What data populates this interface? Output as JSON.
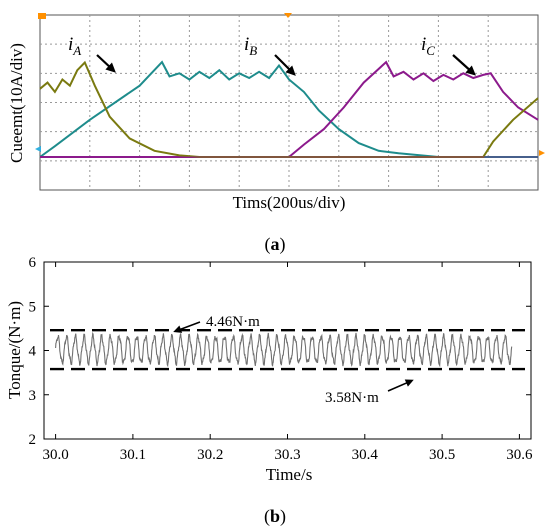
{
  "chart_data": [
    {
      "type": "line",
      "panel_label": "(a)",
      "panel_letter": "a",
      "xlabel": "Tims(200us/div)",
      "ylabel": "Cueemt(10A/div)",
      "x_divisions": 10,
      "y_divisions": 6,
      "grid": true,
      "annotations": [
        {
          "label": "i",
          "subscript": "A"
        },
        {
          "label": "i",
          "subscript": "B"
        },
        {
          "label": "i",
          "subscript": "C"
        }
      ],
      "series": [
        {
          "name": "iA",
          "color": "#1e8c8c",
          "points": [
            [
              0,
              0
            ],
            [
              0.3,
              0.35
            ],
            [
              1.0,
              1.2
            ],
            [
              2.0,
              2.3
            ],
            [
              2.45,
              3.06
            ],
            [
              2.6,
              2.6
            ],
            [
              2.8,
              2.7
            ],
            [
              3.0,
              2.5
            ],
            [
              3.2,
              2.75
            ],
            [
              3.4,
              2.55
            ],
            [
              3.6,
              2.8
            ],
            [
              3.8,
              2.5
            ],
            [
              4.0,
              2.7
            ],
            [
              4.2,
              2.55
            ],
            [
              4.4,
              2.75
            ],
            [
              4.6,
              2.55
            ],
            [
              4.8,
              2.95
            ],
            [
              5.0,
              2.5
            ],
            [
              5.3,
              2.1
            ],
            [
              5.6,
              1.5
            ],
            [
              6.0,
              0.9
            ],
            [
              6.4,
              0.45
            ],
            [
              6.8,
              0.2
            ],
            [
              7.2,
              0.12
            ],
            [
              7.6,
              0.06
            ],
            [
              8.0,
              0
            ],
            [
              10,
              0
            ]
          ]
        },
        {
          "name": "iB",
          "color": "#8c1a8c",
          "points": [
            [
              0,
              0
            ],
            [
              5.0,
              0
            ],
            [
              5.3,
              0.4
            ],
            [
              5.7,
              0.9
            ],
            [
              6.1,
              1.6
            ],
            [
              6.5,
              2.4
            ],
            [
              6.95,
              3.06
            ],
            [
              7.1,
              2.6
            ],
            [
              7.3,
              2.75
            ],
            [
              7.5,
              2.5
            ],
            [
              7.7,
              2.7
            ],
            [
              7.9,
              2.45
            ],
            [
              8.1,
              2.65
            ],
            [
              8.3,
              2.5
            ],
            [
              8.5,
              2.7
            ],
            [
              8.7,
              2.55
            ],
            [
              8.9,
              2.65
            ],
            [
              9.05,
              2.7
            ],
            [
              9.3,
              2.1
            ],
            [
              9.6,
              1.6
            ],
            [
              10,
              1.2
            ]
          ]
        },
        {
          "name": "iC",
          "color": "#7a7a10",
          "points": [
            [
              0,
              2.2
            ],
            [
              0.15,
              2.4
            ],
            [
              0.3,
              2.1
            ],
            [
              0.45,
              2.5
            ],
            [
              0.6,
              2.3
            ],
            [
              0.75,
              2.8
            ],
            [
              0.9,
              3.05
            ],
            [
              1.1,
              2.3
            ],
            [
              1.4,
              1.3
            ],
            [
              1.8,
              0.6
            ],
            [
              2.3,
              0.2
            ],
            [
              2.8,
              0.05
            ],
            [
              3.2,
              0
            ],
            [
              8.9,
              0
            ],
            [
              9.1,
              0.5
            ],
            [
              9.5,
              1.2
            ],
            [
              10,
              1.9
            ]
          ]
        }
      ]
    },
    {
      "type": "line",
      "panel_label": "(b)",
      "panel_letter": "b",
      "xlabel": "Time/s",
      "ylabel": "Tonque/(N·m)",
      "xlim": [
        29.985,
        30.615
      ],
      "ylim": [
        2,
        6
      ],
      "x_ticks": [
        "30.0",
        "30.1",
        "30.2",
        "30.3",
        "30.4",
        "30.5",
        "30.6"
      ],
      "y_ticks": [
        "2",
        "3",
        "4",
        "5",
        "6"
      ],
      "grid": false,
      "reference_lines": [
        {
          "value": 4.46,
          "label": "4.46N·m"
        },
        {
          "value": 3.58,
          "label": "3.58N·m"
        }
      ],
      "series": [
        {
          "color": "#707070",
          "x_start": 30.0,
          "x_end": 30.59,
          "mean": 4.02,
          "amplitude": 0.38,
          "cycles": 52
        }
      ]
    }
  ]
}
